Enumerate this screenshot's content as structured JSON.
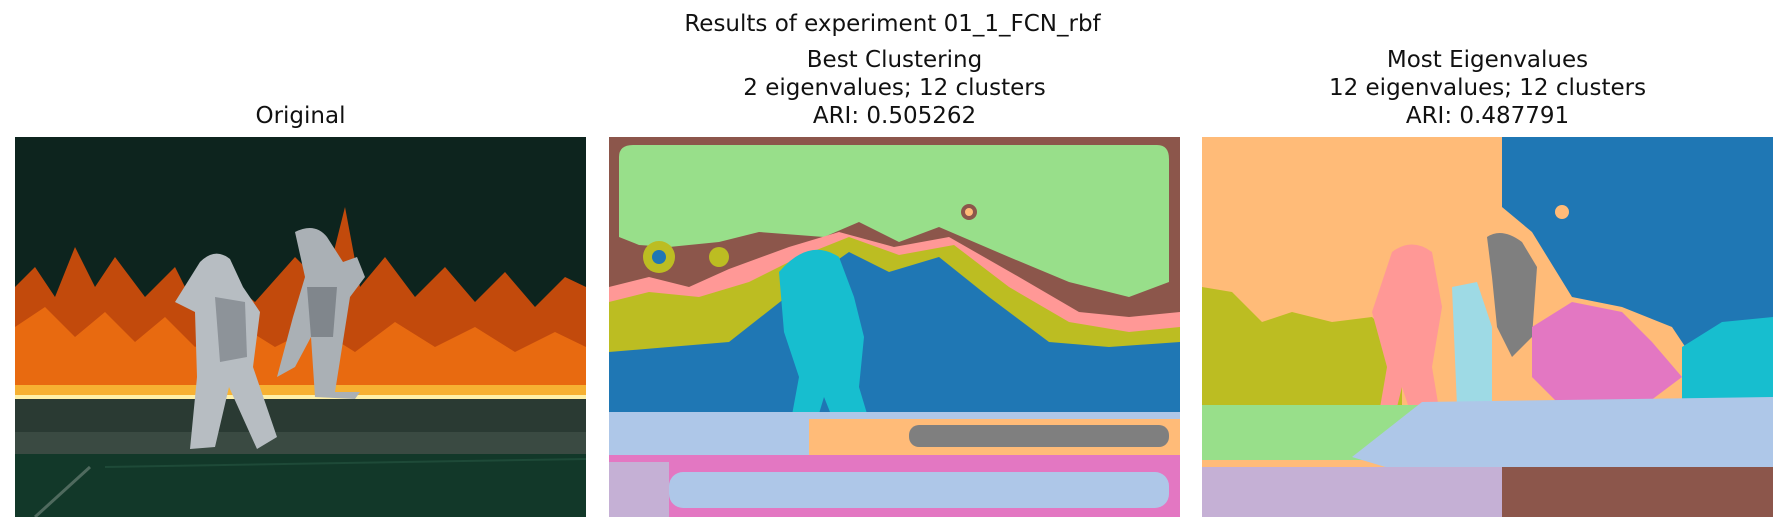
{
  "figure": {
    "suptitle": "Results of experiment 01_1_FCN_rbf"
  },
  "panels": [
    {
      "title_lines": [
        "Original"
      ]
    },
    {
      "title_lines": [
        "Best Clustering",
        "2 eigenvalues; 12 clusters",
        "ARI: 0.505262"
      ]
    },
    {
      "title_lines": [
        "Most Eigenvalues",
        "12 eigenvalues; 12 clusters",
        "ARI: 0.487791"
      ]
    }
  ],
  "colors": {
    "bg_dark": "#0d241e",
    "fire_orange": "#e86a10",
    "fire_yellow": "#f7b132",
    "suit_silver": "#b7bdc2",
    "ground_dark": "#2a3a33",
    "floor_green": "#123829",
    "tab_blue": "#1f77b4",
    "tab_lightblue": "#aec7e8",
    "tab_orange_light": "#ffbb78",
    "tab_green_light": "#98df8a",
    "tab_red_light": "#ff9896",
    "tab_brown": "#8c564b",
    "tab_pink": "#e377c2",
    "tab_gray": "#7f7f7f",
    "tab_olive": "#bcbd22",
    "tab_cyan": "#17becf",
    "tab_cyan_light": "#9edae5",
    "tab_purple_light": "#c5b0d5"
  }
}
